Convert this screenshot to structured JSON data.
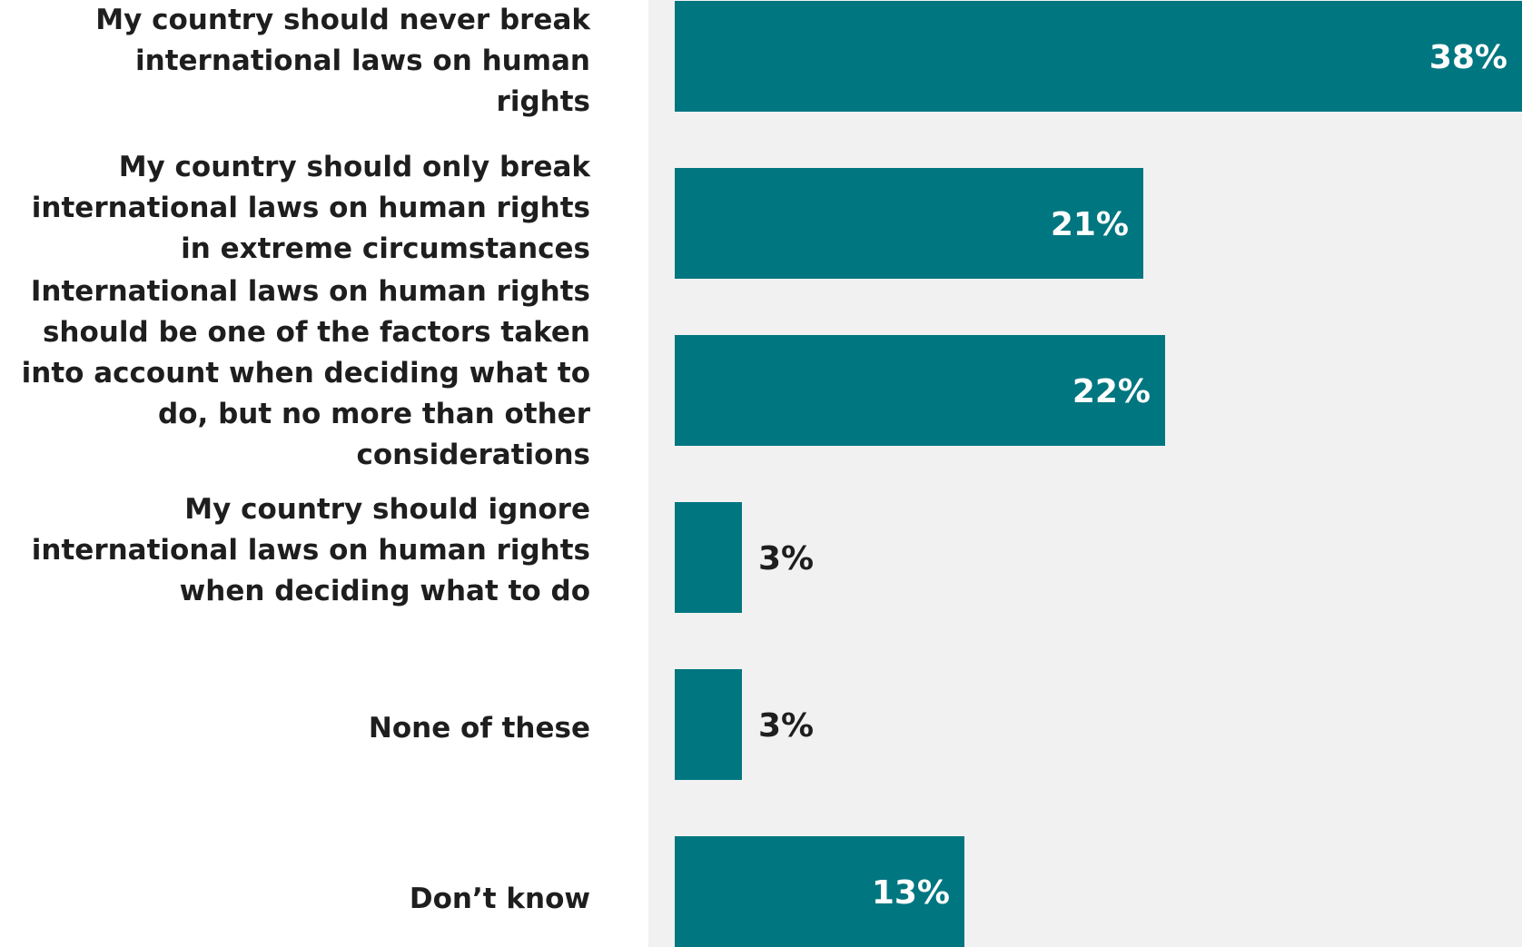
{
  "chart_data": {
    "type": "bar",
    "orientation": "horizontal",
    "categories": [
      "My country should never break international laws on human rights",
      "My country should only break international laws on human rights in extreme circumstances",
      "International laws on human rights should be one of the factors taken into account when deciding what to do, but no more than other considerations",
      "My country should ignore international laws on human rights when deciding what to do",
      "None of these",
      "Don’t know"
    ],
    "category_lines": [
      [
        "My country should never break",
        "international laws on human",
        "rights"
      ],
      [
        "My country should only break",
        "international laws on human rights",
        "in extreme circumstances"
      ],
      [
        "International laws on human rights",
        "should be one of the factors taken",
        "into account when deciding what to",
        "do, but no more than other",
        "considerations"
      ],
      [
        "My country should ignore",
        "international laws on human rights",
        "when deciding what to do"
      ],
      [
        "None of these"
      ],
      [
        "Don’t know"
      ]
    ],
    "values": [
      38,
      21,
      22,
      3,
      3,
      13
    ],
    "value_labels": [
      "38%",
      "21%",
      "22%",
      "3%",
      "3%",
      "13%"
    ],
    "xlim": [
      0,
      38
    ],
    "grid": false,
    "legend": "none",
    "colors": {
      "bar": "#007680",
      "plot_background": "#f1f1f1",
      "label_inside": "#ffffff",
      "label_outside": "#1e1e1e",
      "category_text": "#1e1e1e"
    }
  }
}
